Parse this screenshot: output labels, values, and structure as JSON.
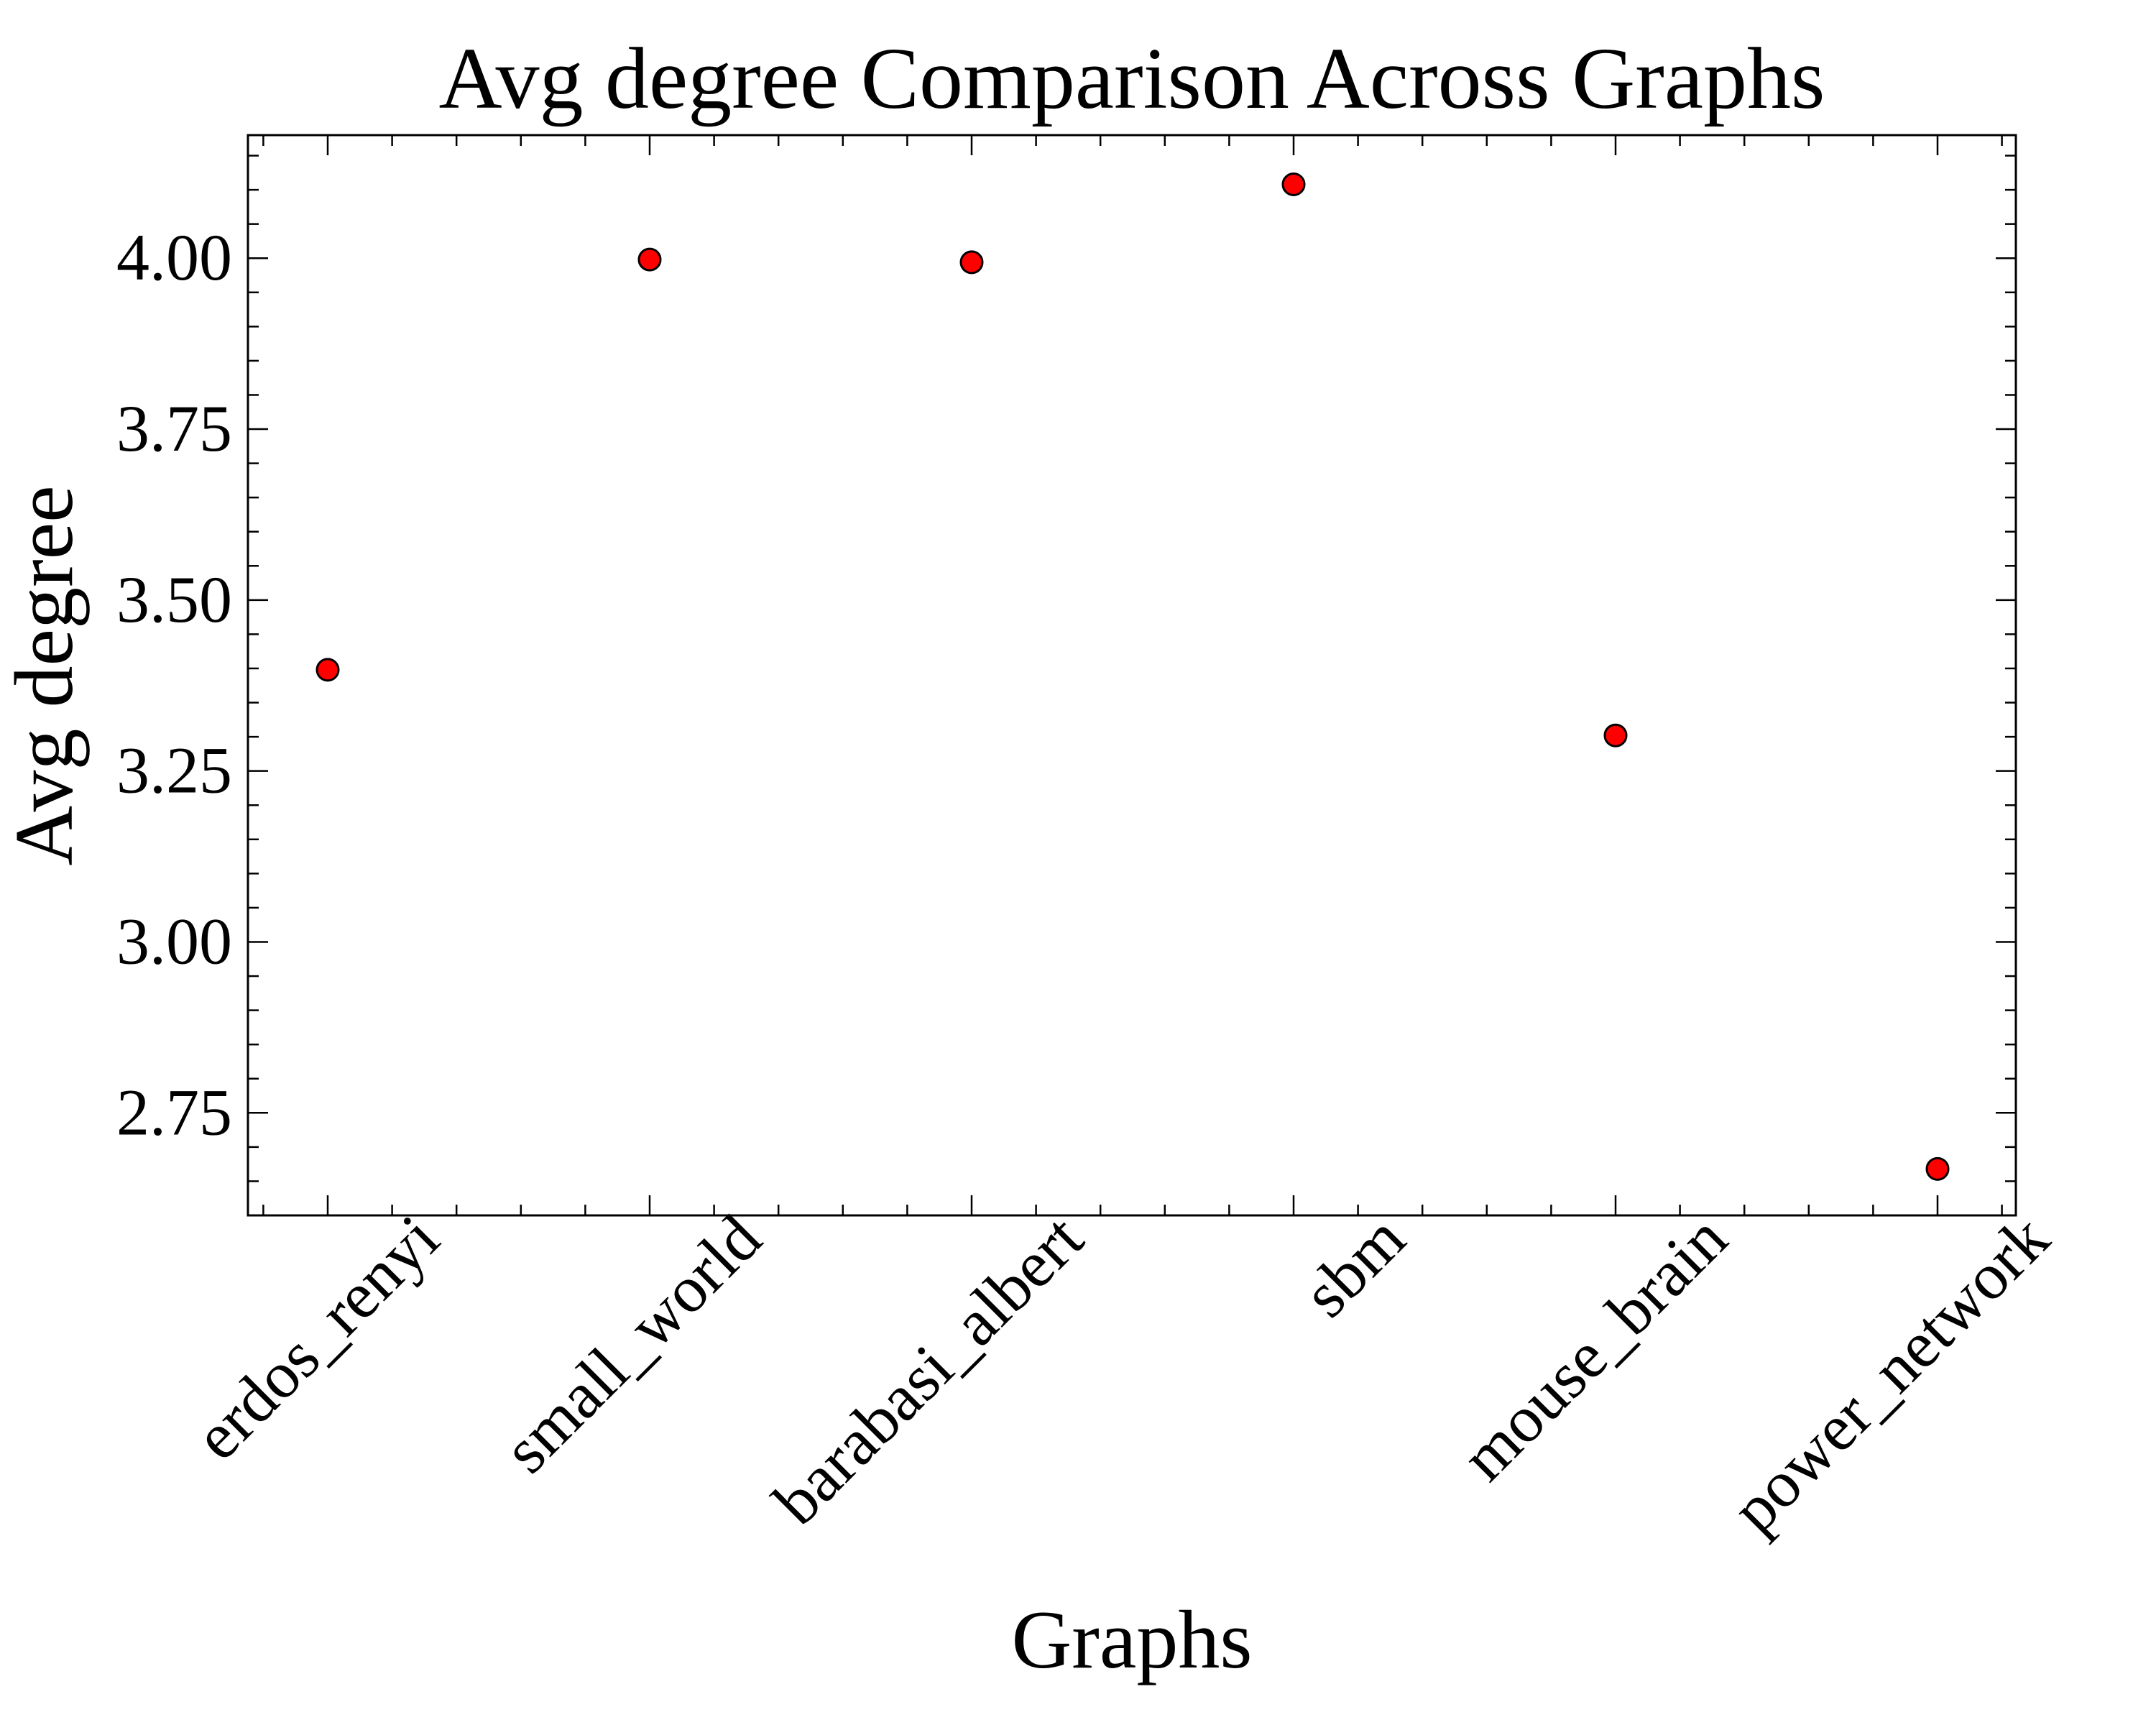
{
  "chart_data": {
    "type": "scatter",
    "title": "Avg degree Comparison Across Graphs",
    "xlabel": "Graphs",
    "ylabel": "Avg degree",
    "categories": [
      "erdos_renyi",
      "small_world",
      "barabasi_albert",
      "sbm",
      "mouse_brain",
      "power_network"
    ],
    "values": [
      3.398,
      3.998,
      3.994,
      4.108,
      3.302,
      2.668
    ],
    "ylim": [
      2.6,
      4.18
    ],
    "yticks": [
      2.75,
      3.0,
      3.25,
      3.5,
      3.75,
      4.0
    ],
    "ytick_labels": [
      "2.75",
      "3.00",
      "3.25",
      "3.50",
      "3.75",
      "4.00"
    ],
    "grid": false,
    "legend": "none",
    "colors": {
      "marker_fill": "#ff0000",
      "marker_edge": "#000000",
      "axis": "#000000"
    }
  }
}
